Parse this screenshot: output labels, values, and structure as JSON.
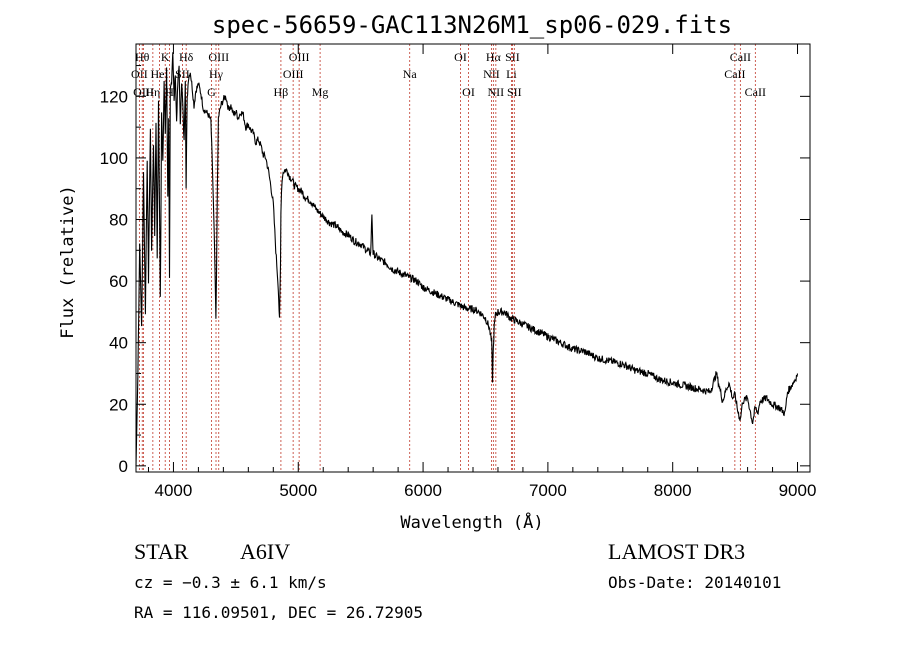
{
  "colors": {
    "line": "#000000",
    "marker": "#c0392b",
    "background": "#ffffff"
  },
  "chart_data": {
    "type": "line",
    "title": "spec-56659-GAC113N26M1_sp06-029.fits",
    "xlabel": "Wavelength (Å)",
    "ylabel": "Flux (relative)",
    "xlim": [
      3700,
      9100
    ],
    "ylim": [
      -2,
      137
    ],
    "xticks": [
      "4000",
      "5000",
      "6000",
      "7000",
      "8000",
      "9000"
    ],
    "yticks": [
      "0",
      "20",
      "40",
      "60",
      "80",
      "100",
      "120"
    ],
    "xtick_values": [
      4000,
      5000,
      6000,
      7000,
      8000,
      9000
    ],
    "ytick_values": [
      0,
      20,
      40,
      60,
      80,
      100,
      120
    ],
    "series": [
      {
        "name": "spectrum",
        "x": [
          3700,
          3715,
          3730,
          3745,
          3760,
          3775,
          3790,
          3800,
          3815,
          3825,
          3840,
          3850,
          3860,
          3870,
          3880,
          3890,
          3895,
          3905,
          3915,
          3925,
          3935,
          3945,
          3955,
          3962,
          3968,
          3975,
          3985,
          3995,
          4005,
          4015,
          4025,
          4035,
          4045,
          4055,
          4065,
          4075,
          4085,
          4095,
          4101,
          4110,
          4120,
          4135,
          4150,
          4165,
          4180,
          4200,
          4220,
          4240,
          4260,
          4280,
          4300,
          4310,
          4320,
          4330,
          4340,
          4345,
          4352,
          4360,
          4380,
          4400,
          4420,
          4440,
          4460,
          4480,
          4500,
          4520,
          4540,
          4560,
          4580,
          4600,
          4620,
          4640,
          4660,
          4680,
          4700,
          4720,
          4740,
          4760,
          4780,
          4800,
          4820,
          4840,
          4850,
          4858,
          4861,
          4866,
          4875,
          4890,
          4910,
          4930,
          4950,
          4970,
          5000,
          5030,
          5060,
          5100,
          5150,
          5200,
          5250,
          5300,
          5350,
          5400,
          5450,
          5500,
          5550,
          5580,
          5590,
          5600,
          5650,
          5700,
          5750,
          5800,
          5850,
          5900,
          5950,
          6000,
          6050,
          6100,
          6150,
          6200,
          6250,
          6300,
          6350,
          6400,
          6450,
          6500,
          6530,
          6550,
          6556,
          6563,
          6570,
          6580,
          6600,
          6650,
          6700,
          6750,
          6800,
          6850,
          6900,
          6950,
          7000,
          7100,
          7200,
          7300,
          7400,
          7500,
          7600,
          7700,
          7800,
          7900,
          8000,
          8100,
          8200,
          8300,
          8350,
          8400,
          8430,
          8450,
          8480,
          8500,
          8520,
          8542,
          8560,
          8600,
          8640,
          8662,
          8680,
          8700,
          8750,
          8800,
          8850,
          8900,
          8920,
          8950,
          8980,
          9000
        ],
        "y": [
          0,
          30,
          72,
          45,
          95,
          50,
          100,
          60,
          110,
          70,
          105,
          75,
          112,
          68,
          118,
          78,
          55,
          115,
          98,
          125,
          108,
          130,
          88,
          112,
          60,
          122,
          125,
          135,
          118,
          128,
          112,
          124,
          130,
          110,
          125,
          117,
          105,
          126,
          90,
          119,
          126,
          128,
          123,
          117,
          122,
          124,
          121,
          116,
          115,
          114,
          112,
          100,
          85,
          70,
          47,
          62,
          90,
          113,
          117,
          119,
          120,
          116,
          117,
          114,
          115,
          113,
          115,
          114,
          110,
          111,
          109,
          108,
          105,
          106,
          104,
          101,
          100,
          96,
          91,
          85,
          70,
          58,
          47,
          65,
          82,
          90,
          95,
          96,
          96,
          94,
          93,
          91,
          90,
          89,
          87,
          86,
          83,
          81,
          79,
          78,
          76,
          75,
          73,
          72,
          70,
          69,
          82,
          69,
          67,
          66,
          64,
          63,
          62,
          61,
          60,
          58,
          57,
          56,
          55,
          54,
          53,
          52,
          51,
          51,
          50,
          48,
          45,
          40,
          28,
          38,
          45,
          49,
          50,
          50,
          48,
          47,
          46,
          45,
          44,
          43,
          42,
          40,
          38,
          37,
          35,
          34,
          33,
          31,
          30,
          28,
          27,
          26,
          25,
          24,
          30,
          21,
          25,
          27,
          22,
          23,
          18,
          15,
          21,
          22,
          14,
          19,
          17,
          21,
          22,
          20,
          19,
          17,
          24,
          26,
          28,
          30
        ],
        "noise_amplitude": 1.2
      }
    ],
    "line_markers": [
      {
        "label": "OII",
        "x": 3727,
        "row": 2
      },
      {
        "label": "Hθ",
        "x": 3750,
        "row": 1
      },
      {
        "label": "OIII",
        "x": 3760,
        "row": 3
      },
      {
        "label": "Hη",
        "x": 3835,
        "row": 3
      },
      {
        "label": "HeI",
        "x": 3888,
        "row": 2
      },
      {
        "label": "K",
        "x": 3934,
        "row": 1
      },
      {
        "label": "H",
        "x": 3969,
        "row": 3
      },
      {
        "label": "SII",
        "x": 4072,
        "row": 2
      },
      {
        "label": "Hδ",
        "x": 4102,
        "row": 1
      },
      {
        "label": "G",
        "x": 4305,
        "row": 3
      },
      {
        "label": "Hγ",
        "x": 4341,
        "row": 2
      },
      {
        "label": "OIII",
        "x": 4363,
        "row": 1
      },
      {
        "label": "Hβ",
        "x": 4861,
        "row": 3
      },
      {
        "label": "OIII",
        "x": 4959,
        "row": 2
      },
      {
        "label": "OIII",
        "x": 5007,
        "row": 1
      },
      {
        "label": "Mg",
        "x": 5175,
        "row": 3
      },
      {
        "label": "Na",
        "x": 5893,
        "row": 2
      },
      {
        "label": "OI",
        "x": 6300,
        "row": 1
      },
      {
        "label": "OI",
        "x": 6364,
        "row": 3
      },
      {
        "label": "NII",
        "x": 6548,
        "row": 2
      },
      {
        "label": "Hα",
        "x": 6563,
        "row": 1
      },
      {
        "label": "NII",
        "x": 6583,
        "row": 3
      },
      {
        "label": "Li",
        "x": 6708,
        "row": 2
      },
      {
        "label": "SII",
        "x": 6716,
        "row": 1
      },
      {
        "label": "SII",
        "x": 6731,
        "row": 3
      },
      {
        "label": "CaII",
        "x": 8498,
        "row": 2
      },
      {
        "label": "CaII",
        "x": 8542,
        "row": 1
      },
      {
        "label": "CaII",
        "x": 8662,
        "row": 3
      }
    ]
  },
  "info": {
    "object_class": "STAR",
    "subclass": "A6IV",
    "survey": "LAMOST DR3",
    "cz": "cz = −0.3 ± 6.1 km/s",
    "obs_date": "Obs-Date: 20140101",
    "coords": "RA = 116.09501, DEC =  26.72905"
  }
}
